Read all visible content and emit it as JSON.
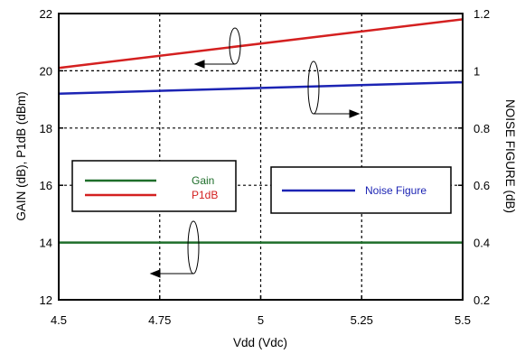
{
  "chart_data": {
    "type": "line",
    "title": "",
    "xlabel": "Vdd (Vdc)",
    "ylabel_left": "GAIN (dB), P1dB (dBm)",
    "ylabel_right": "NOISE FIGURE (dB)",
    "x_ticks": [
      "4.5",
      "4.75",
      "5",
      "5.25",
      "5.5"
    ],
    "y_left_ticks": [
      "12",
      "14",
      "16",
      "18",
      "20",
      "22"
    ],
    "y_right_ticks": [
      "0.2",
      "0.4",
      "0.6",
      "0.8",
      "1",
      "1.2"
    ],
    "xlim": [
      4.5,
      5.5
    ],
    "ylim_left": [
      12,
      22
    ],
    "ylim_right": [
      0.2,
      1.2
    ],
    "grid": true,
    "series": [
      {
        "name": "Gain",
        "axis": "left",
        "color": "#1e6e2a",
        "x": [
          4.5,
          5.5
        ],
        "y": [
          14.0,
          14.0
        ]
      },
      {
        "name": "P1dB",
        "axis": "left",
        "color": "#d42020",
        "x": [
          4.5,
          5.5
        ],
        "y": [
          20.1,
          21.8
        ]
      },
      {
        "name": "Noise Figure",
        "axis": "right",
        "color": "#1c24b4",
        "x": [
          4.5,
          5.5
        ],
        "y": [
          0.92,
          0.96
        ]
      }
    ],
    "legends": [
      {
        "entries": [
          "Gain",
          "P1dB"
        ]
      },
      {
        "entries": [
          "Noise Figure"
        ]
      }
    ]
  }
}
